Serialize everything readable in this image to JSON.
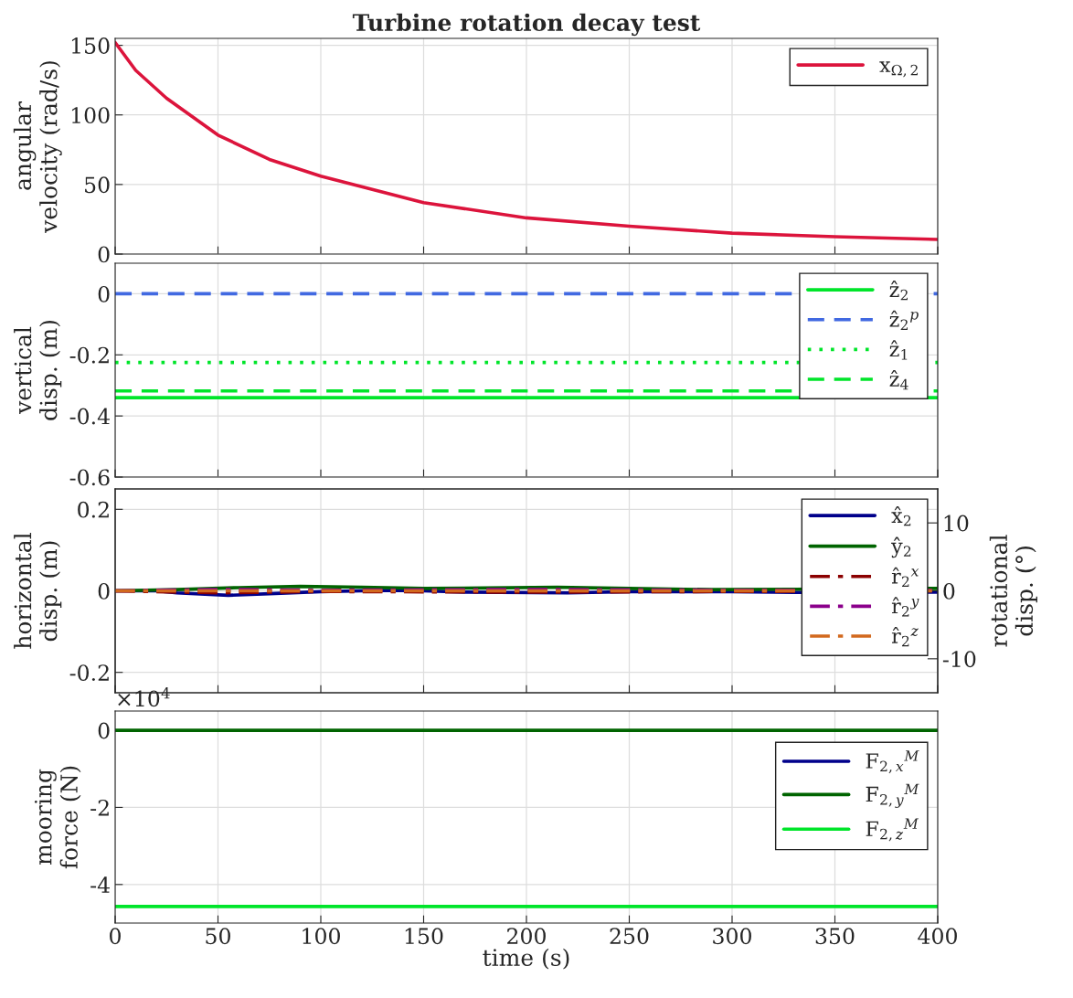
{
  "chart_data": [
    {
      "type": "line",
      "title": "Turbine rotation decay test",
      "ylabel": "angular\nvelocity (rad/s)",
      "xlim": [
        0,
        400
      ],
      "xticks": [
        0,
        50,
        100,
        150,
        200,
        250,
        300,
        350,
        400
      ],
      "ylim": [
        0,
        155
      ],
      "yticks": [
        0,
        50,
        100,
        150
      ],
      "grid": true,
      "legend": "top right",
      "tick_labels": "y",
      "line_style": "solid",
      "series": [
        {
          "name": "x$_{Ω,2}$",
          "color": "#dc143c",
          "x": [
            0,
            10,
            25,
            50,
            75,
            100,
            150,
            200,
            250,
            300,
            350,
            400
          ],
          "values": [
            152,
            132,
            112,
            85.5,
            68,
            56,
            37,
            26,
            20,
            15,
            12.5,
            10.5
          ]
        }
      ]
    },
    {
      "type": "line",
      "ylabel": "vertical\ndisp. (m)",
      "xlim": [
        0,
        400
      ],
      "xticks": [
        0,
        50,
        100,
        150,
        200,
        250,
        300,
        350,
        400
      ],
      "ylim": [
        -0.6,
        0.1
      ],
      "yticks": [
        -0.6,
        -0.4,
        -0.2,
        0
      ],
      "grid": true,
      "legend": "top right",
      "tick_labels": "y",
      "series": [
        {
          "name": "ẑ$_{2}$",
          "color": "#00e52a",
          "line_style": "solid",
          "x": [
            0,
            400
          ],
          "values": [
            -0.34,
            -0.34
          ]
        },
        {
          "name": "ẑ$_{2}$$^{p}$",
          "color": "#4169e1",
          "line_style": "dashed",
          "x": [
            0,
            400
          ],
          "values": [
            0,
            0
          ]
        },
        {
          "name": "ẑ$_{1}$",
          "color": "#00e52a",
          "line_style": "dotted",
          "x": [
            0,
            400
          ],
          "values": [
            -0.225,
            -0.225
          ]
        },
        {
          "name": "ẑ$_{4}$",
          "color": "#00e52a",
          "line_style": "dashed",
          "x": [
            0,
            400
          ],
          "values": [
            -0.318,
            -0.318
          ]
        }
      ]
    },
    {
      "type": "line",
      "ylabel": "horizontal\ndisp. (m)",
      "y2label": "rotational\ndisp. (°)",
      "xlim": [
        0,
        400
      ],
      "xticks": [
        0,
        50,
        100,
        150,
        200,
        250,
        300,
        350,
        400
      ],
      "ylim": [
        -0.25,
        0.25
      ],
      "yticks": [
        -0.2,
        0,
        0.2
      ],
      "y2lim": [
        -15,
        15
      ],
      "y2ticks": [
        -10,
        0,
        10
      ],
      "grid": true,
      "legend": "top right",
      "tick_labels": "y",
      "series": [
        {
          "name": "x̂$_{2}$",
          "color": "#00008b",
          "line_style": "solid",
          "x": [
            0,
            20,
            30,
            55,
            75,
            100,
            130,
            150,
            170,
            220,
            250,
            300,
            330,
            360,
            400
          ],
          "values": [
            0,
            0,
            -0.005,
            -0.011,
            -0.007,
            -0.002,
            0.001,
            0,
            -0.003,
            -0.005,
            -0.002,
            -0.002,
            -0.004,
            null,
            -0.003
          ]
        },
        {
          "name": "ŷ$_{2}$",
          "color": "#006400",
          "line_style": "solid",
          "x": [
            0,
            30,
            60,
            90,
            120,
            150,
            180,
            215,
            250,
            290,
            330,
            360,
            400
          ],
          "values": [
            0,
            0.003,
            0.008,
            0.011,
            0.009,
            0.006,
            0.007,
            0.009,
            0.006,
            0.003,
            0.004,
            null,
            0.006
          ]
        },
        {
          "name": "r̂$_{2}$$^{x}$",
          "color": "#8b0000",
          "line_style": "dashdot",
          "axis": "y2",
          "x": [
            0,
            50,
            100,
            200,
            300,
            400
          ],
          "values": [
            0,
            -0.3,
            -0.1,
            -0.2,
            -0.1,
            0
          ]
        },
        {
          "name": "r̂$_{2}$$^{y}$",
          "color": "#8b008b",
          "line_style": "dashdot",
          "axis": "y2",
          "x": [
            0,
            50,
            100,
            200,
            300,
            400
          ],
          "values": [
            0,
            0.2,
            0.1,
            0.2,
            0.1,
            0.1
          ]
        },
        {
          "name": "r̂$_{2}$$^{z}$",
          "color": "#d2691e",
          "line_style": "dashdot",
          "axis": "y2",
          "x": [
            0,
            50,
            100,
            200,
            300,
            400
          ],
          "values": [
            0,
            0,
            0,
            0,
            0,
            0
          ]
        }
      ]
    },
    {
      "type": "line",
      "xlabel": "time (s)",
      "ylabel": "mooring\nforce (N)",
      "xlim": [
        0,
        400
      ],
      "xticks": [
        0,
        50,
        100,
        150,
        200,
        250,
        300,
        350,
        400
      ],
      "ylim": [
        -5,
        0.5
      ],
      "yticks": [
        -4,
        -2,
        0
      ],
      "grid": true,
      "legend": "top right",
      "annotations": [
        "×10$^{4}$"
      ],
      "series": [
        {
          "name": "F$_{2,x}$$^{M}$",
          "color": "#00008b",
          "line_style": "solid",
          "values": [
            null
          ]
        },
        {
          "name": "F$_{2,y}$$^{M}$",
          "color": "#006400",
          "line_style": "solid",
          "x": [
            0,
            400
          ],
          "values": [
            0,
            0
          ]
        },
        {
          "name": "F$_{2,z}$$^{M}$",
          "color": "#00e52a",
          "line_style": "solid",
          "x": [
            0,
            400
          ],
          "values": [
            -4.57,
            -4.57
          ]
        }
      ]
    }
  ]
}
